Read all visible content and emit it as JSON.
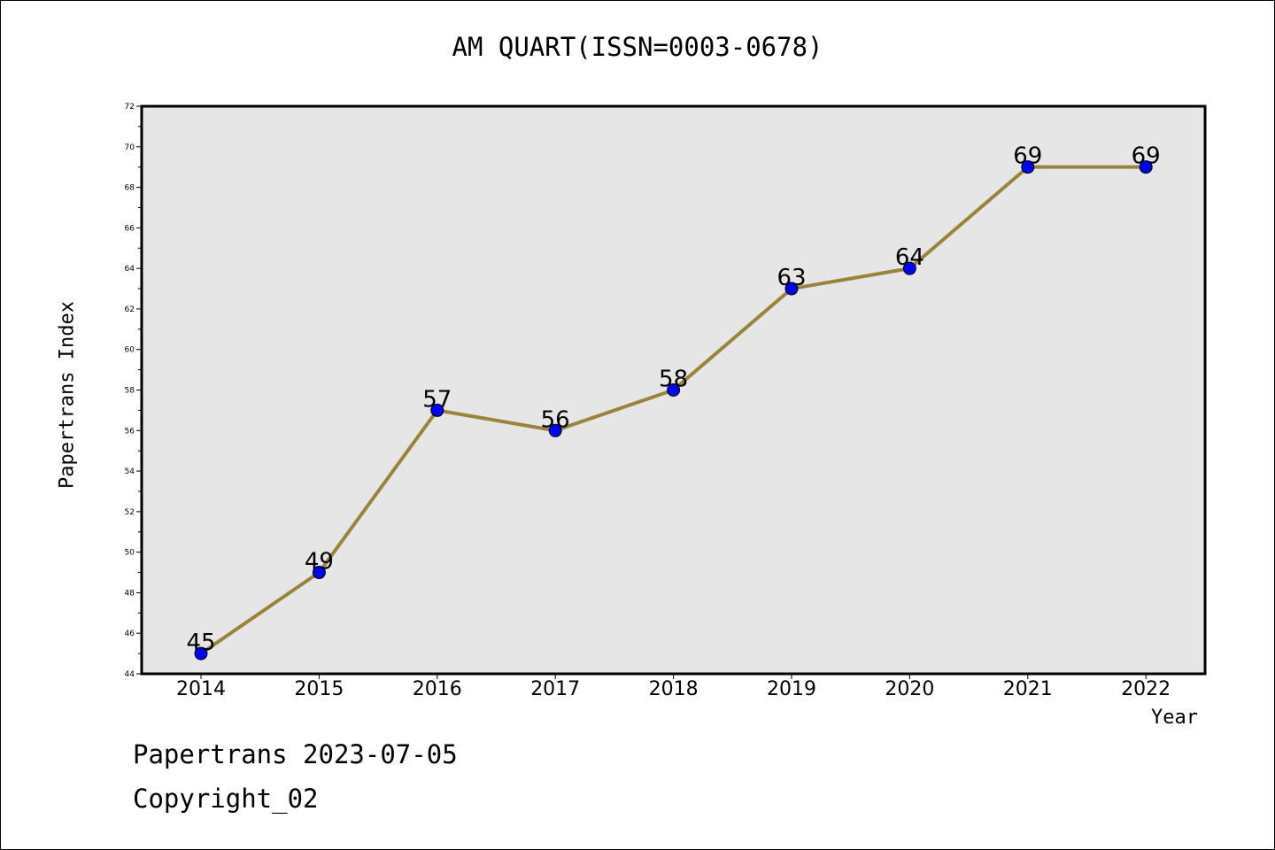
{
  "title": "AM QUART(ISSN=0003-0678)",
  "footer": {
    "line1": "Papertrans 2023-07-05",
    "line2": "Copyright_02"
  },
  "colors": {
    "line": "#9a843c",
    "marker": "#0000ff",
    "plot_background": "#e6e6e6"
  },
  "chart_data": {
    "type": "line",
    "title": "AM QUART(ISSN=0003-0678)",
    "xlabel": "Year",
    "ylabel": "Papertrans Index",
    "categories": [
      "2014",
      "2015",
      "2016",
      "2017",
      "2018",
      "2019",
      "2020",
      "2021",
      "2022"
    ],
    "series": [
      {
        "values": [
          45,
          49,
          57,
          56,
          58,
          63,
          64,
          69,
          69
        ]
      }
    ],
    "ylim": [
      44,
      72
    ],
    "yticks": [
      "44",
      "46",
      "48",
      "50",
      "52",
      "54",
      "56",
      "58",
      "60",
      "62",
      "64",
      "66",
      "68",
      "70",
      "72"
    ],
    "data_labels": [
      "45",
      "49",
      "57",
      "56",
      "58",
      "63",
      "64",
      "69",
      "69"
    ],
    "grid": false,
    "legend": "none"
  }
}
